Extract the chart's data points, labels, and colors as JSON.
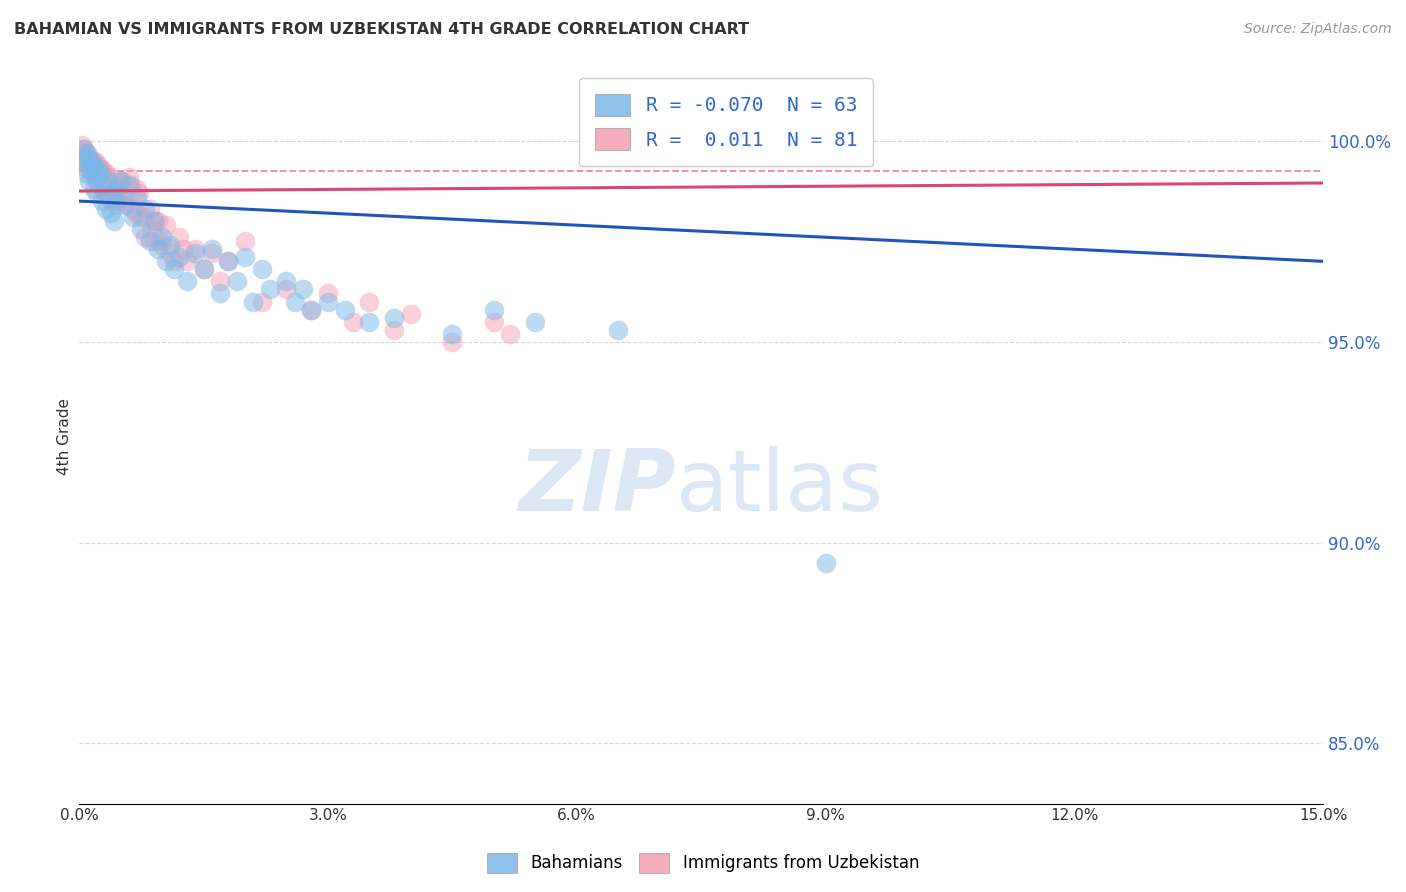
{
  "title": "BAHAMIAN VS IMMIGRANTS FROM UZBEKISTAN 4TH GRADE CORRELATION CHART",
  "source": "Source: ZipAtlas.com",
  "ylabel": "4th Grade",
  "y_ticks": [
    85.0,
    90.0,
    95.0,
    100.0
  ],
  "x_range": [
    0.0,
    15.0
  ],
  "y_range": [
    83.5,
    101.8
  ],
  "blue_R": -0.07,
  "blue_N": 63,
  "pink_R": 0.011,
  "pink_N": 81,
  "blue_color": "#7ab8e8",
  "pink_color": "#f4a0b5",
  "blue_line_color": "#2255bb",
  "pink_line_color": "#dd4477",
  "watermark_zip": "ZIP",
  "watermark_atlas": "atlas",
  "watermark_color": "#dce8f5",
  "legend_label_blue": "Bahamians",
  "legend_label_pink": "Immigrants from Uzbekistan",
  "blue_line_x": [
    0.0,
    15.0
  ],
  "blue_line_y": [
    98.5,
    97.0
  ],
  "pink_line_x": [
    0.0,
    15.0
  ],
  "pink_line_y": [
    98.75,
    98.95
  ],
  "pink_dash_y": 99.25,
  "blue_points_x": [
    0.05,
    0.08,
    0.1,
    0.12,
    0.13,
    0.15,
    0.18,
    0.2,
    0.22,
    0.25,
    0.28,
    0.3,
    0.32,
    0.35,
    0.38,
    0.4,
    0.42,
    0.45,
    0.5,
    0.55,
    0.6,
    0.65,
    0.7,
    0.75,
    0.8,
    0.85,
    0.9,
    0.95,
    1.0,
    1.05,
    1.1,
    1.15,
    1.2,
    1.3,
    1.4,
    1.5,
    1.6,
    1.7,
    1.8,
    1.9,
    2.0,
    2.1,
    2.2,
    2.3,
    2.5,
    2.6,
    2.7,
    2.8,
    3.0,
    3.2,
    3.5,
    3.8,
    4.5,
    5.0,
    5.5,
    6.5,
    9.0,
    0.06,
    0.09,
    0.14,
    0.17,
    0.24,
    0.45
  ],
  "blue_points_y": [
    99.5,
    99.2,
    99.6,
    99.0,
    99.3,
    99.4,
    98.8,
    99.1,
    98.7,
    99.2,
    98.5,
    98.9,
    98.3,
    99.0,
    98.2,
    98.7,
    98.0,
    98.5,
    99.0,
    98.4,
    98.9,
    98.1,
    98.6,
    97.8,
    98.3,
    97.5,
    98.0,
    97.3,
    97.6,
    97.0,
    97.4,
    96.8,
    97.1,
    96.5,
    97.2,
    96.8,
    97.3,
    96.2,
    97.0,
    96.5,
    97.1,
    96.0,
    96.8,
    96.3,
    96.5,
    96.0,
    96.3,
    95.8,
    96.0,
    95.8,
    95.5,
    95.6,
    95.2,
    95.8,
    95.5,
    95.3,
    89.5,
    99.8,
    99.7,
    99.5,
    99.4,
    99.3,
    98.8
  ],
  "pink_points_x": [
    0.03,
    0.05,
    0.07,
    0.08,
    0.1,
    0.12,
    0.13,
    0.15,
    0.17,
    0.18,
    0.2,
    0.22,
    0.25,
    0.27,
    0.3,
    0.32,
    0.35,
    0.38,
    0.4,
    0.42,
    0.45,
    0.5,
    0.55,
    0.6,
    0.65,
    0.7,
    0.75,
    0.8,
    0.85,
    0.9,
    0.95,
    1.0,
    1.05,
    1.1,
    1.2,
    1.3,
    1.4,
    1.5,
    1.6,
    1.8,
    2.0,
    2.2,
    2.5,
    2.8,
    3.0,
    3.3,
    3.5,
    3.8,
    4.0,
    4.5,
    5.0,
    5.2,
    0.04,
    0.06,
    0.09,
    0.11,
    0.14,
    0.16,
    0.19,
    0.21,
    0.23,
    0.26,
    0.28,
    0.31,
    0.33,
    0.36,
    0.39,
    0.43,
    0.48,
    0.52,
    0.58,
    0.62,
    0.68,
    0.72,
    0.78,
    0.88,
    0.92,
    0.98,
    1.15,
    1.25,
    1.7
  ],
  "pink_points_y": [
    99.6,
    99.8,
    99.5,
    99.7,
    99.3,
    99.6,
    99.4,
    99.2,
    99.5,
    99.1,
    99.4,
    99.0,
    99.3,
    98.8,
    99.2,
    98.7,
    98.6,
    99.0,
    98.5,
    98.9,
    98.4,
    99.0,
    98.5,
    99.1,
    98.3,
    98.8,
    98.1,
    97.6,
    98.3,
    97.5,
    98.0,
    97.4,
    97.9,
    97.2,
    97.6,
    97.0,
    97.3,
    96.8,
    97.2,
    97.0,
    97.5,
    96.0,
    96.3,
    95.8,
    96.2,
    95.5,
    96.0,
    95.3,
    95.7,
    95.0,
    95.5,
    95.2,
    99.9,
    99.7,
    99.6,
    99.5,
    99.4,
    99.3,
    99.5,
    99.2,
    99.4,
    99.1,
    99.3,
    98.9,
    99.2,
    98.8,
    99.1,
    98.7,
    98.6,
    99.0,
    98.4,
    98.9,
    98.2,
    98.7,
    98.1,
    97.8,
    98.0,
    97.5,
    97.0,
    97.3,
    96.5
  ]
}
